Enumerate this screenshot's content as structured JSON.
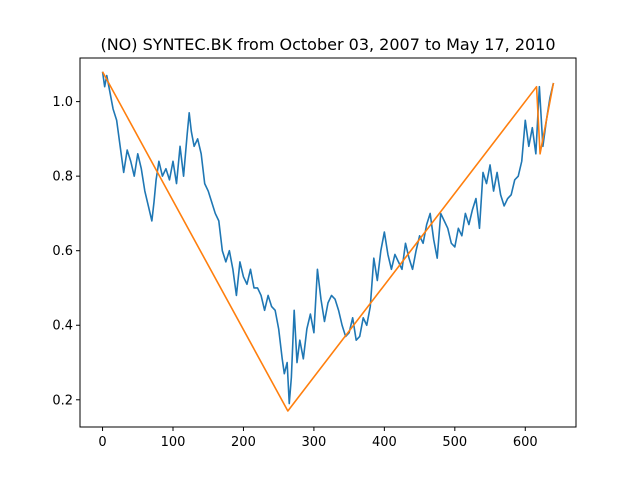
{
  "chart_data": {
    "type": "line",
    "title": "(NO) SYNTEC.BK from October 03, 2007 to May 17, 2010",
    "xlabel": "",
    "ylabel": "",
    "xlim": [
      -32,
      672
    ],
    "ylim": [
      0.127,
      1.117
    ],
    "xticks": [
      0,
      100,
      200,
      300,
      400,
      500,
      600
    ],
    "xtick_labels": [
      "0",
      "100",
      "200",
      "300",
      "400",
      "500",
      "600"
    ],
    "yticks": [
      0.2,
      0.4,
      0.6,
      0.8,
      1.0
    ],
    "ytick_labels": [
      "0.2",
      "0.4",
      "0.6",
      "0.8",
      "1.0"
    ],
    "grid": false,
    "legend": "none",
    "series": [
      {
        "color": "#1f77b4",
        "x": [
          0,
          3,
          6,
          10,
          15,
          20,
          25,
          30,
          35,
          40,
          45,
          50,
          55,
          60,
          65,
          70,
          73,
          76,
          80,
          85,
          90,
          95,
          100,
          105,
          110,
          115,
          120,
          123,
          126,
          130,
          135,
          140,
          145,
          150,
          155,
          160,
          165,
          170,
          175,
          180,
          185,
          190,
          195,
          200,
          205,
          210,
          215,
          220,
          225,
          230,
          235,
          240,
          245,
          250,
          255,
          258,
          262,
          265,
          268,
          272,
          276,
          280,
          285,
          290,
          295,
          300,
          305,
          310,
          315,
          320,
          325,
          330,
          335,
          340,
          345,
          350,
          355,
          360,
          365,
          370,
          375,
          380,
          385,
          390,
          395,
          400,
          405,
          410,
          415,
          420,
          425,
          430,
          435,
          440,
          445,
          450,
          455,
          460,
          465,
          470,
          475,
          480,
          485,
          490,
          495,
          500,
          505,
          510,
          515,
          520,
          525,
          530,
          535,
          540,
          545,
          550,
          555,
          560,
          565,
          570,
          575,
          580,
          585,
          590,
          595,
          600,
          605,
          610,
          615,
          620,
          625,
          630,
          635,
          640
        ],
        "y": [
          1.08,
          1.04,
          1.07,
          1.03,
          0.98,
          0.95,
          0.88,
          0.81,
          0.87,
          0.84,
          0.8,
          0.86,
          0.82,
          0.76,
          0.72,
          0.68,
          0.73,
          0.79,
          0.84,
          0.8,
          0.82,
          0.79,
          0.84,
          0.78,
          0.88,
          0.8,
          0.91,
          0.97,
          0.92,
          0.88,
          0.9,
          0.86,
          0.78,
          0.76,
          0.73,
          0.7,
          0.68,
          0.6,
          0.57,
          0.6,
          0.55,
          0.48,
          0.57,
          0.53,
          0.51,
          0.55,
          0.5,
          0.5,
          0.48,
          0.44,
          0.48,
          0.45,
          0.44,
          0.39,
          0.31,
          0.27,
          0.3,
          0.19,
          0.26,
          0.44,
          0.3,
          0.36,
          0.31,
          0.39,
          0.43,
          0.38,
          0.55,
          0.47,
          0.41,
          0.46,
          0.48,
          0.47,
          0.44,
          0.4,
          0.37,
          0.38,
          0.42,
          0.36,
          0.37,
          0.42,
          0.4,
          0.45,
          0.58,
          0.52,
          0.6,
          0.65,
          0.59,
          0.55,
          0.59,
          0.57,
          0.55,
          0.62,
          0.58,
          0.55,
          0.6,
          0.64,
          0.62,
          0.67,
          0.7,
          0.63,
          0.58,
          0.7,
          0.68,
          0.66,
          0.62,
          0.61,
          0.66,
          0.64,
          0.7,
          0.67,
          0.71,
          0.74,
          0.66,
          0.81,
          0.78,
          0.83,
          0.76,
          0.81,
          0.75,
          0.72,
          0.74,
          0.75,
          0.79,
          0.8,
          0.84,
          0.95,
          0.88,
          0.93,
          0.86,
          1.04,
          0.88,
          0.95,
          1.01,
          1.05
        ]
      },
      {
        "color": "#ff7f0e",
        "x": [
          0,
          263,
          616,
          621,
          640
        ],
        "y": [
          1.08,
          0.17,
          1.04,
          0.86,
          1.05
        ]
      }
    ]
  }
}
